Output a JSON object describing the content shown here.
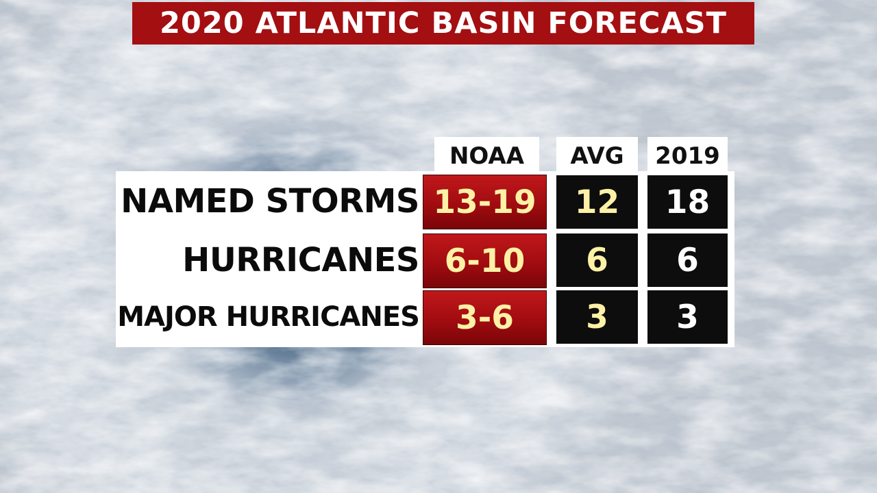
{
  "title": "2020 ATLANTIC BASIN FORECAST",
  "columns": {
    "noaa": "NOAA",
    "avg": "AVG",
    "y2019": "2019"
  },
  "rows": [
    {
      "label": "NAMED STORMS",
      "noaa": "13-19",
      "avg": "12",
      "y2019": "18"
    },
    {
      "label": "HURRICANES",
      "noaa": "6-10",
      "avg": "6",
      "y2019": "6"
    },
    {
      "label": "MAJOR HURRICANES",
      "noaa": "3-6",
      "avg": "3",
      "y2019": "3"
    }
  ],
  "colors": {
    "title_bg": "#a40f12",
    "noaa_cell": "#a10c10",
    "avg_cell": "#0d0d0d",
    "highlight_text": "#fdf1a6"
  }
}
